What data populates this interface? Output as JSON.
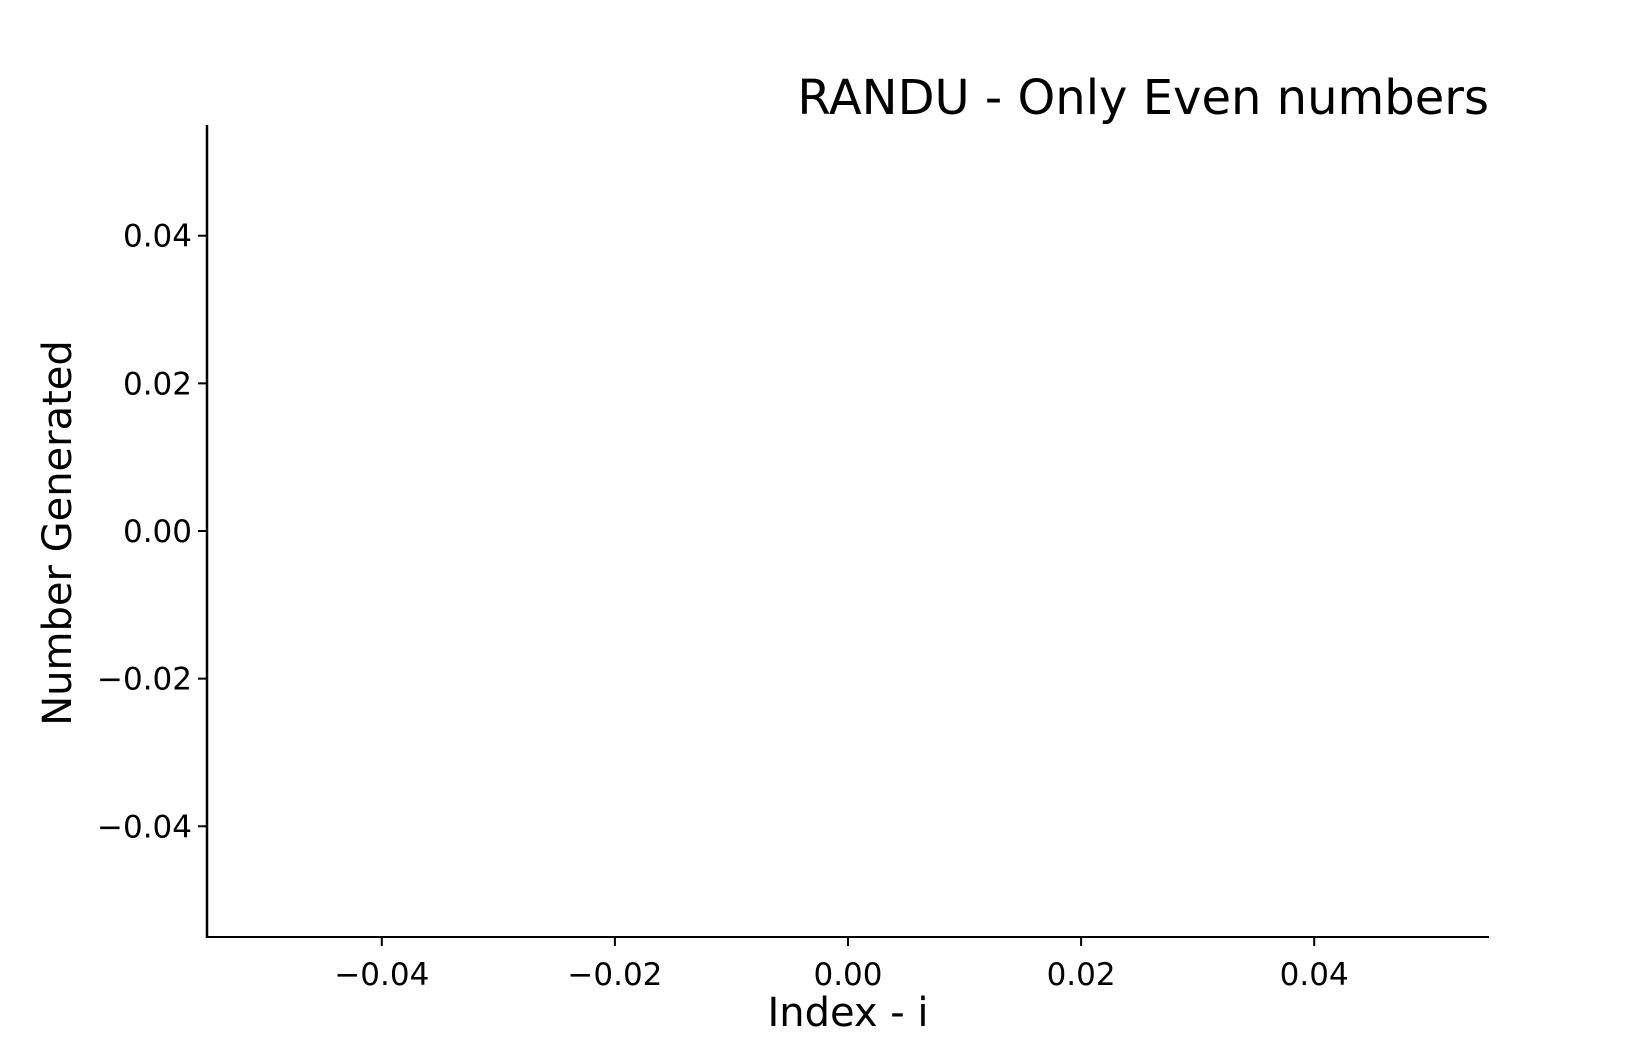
{
  "chart_data": {
    "type": "line",
    "title": "RANDU - Only Even numbers",
    "xlabel": "Index - i",
    "ylabel": "Number Generated",
    "xlim": [
      -0.055,
      0.055
    ],
    "ylim": [
      -0.055,
      0.055
    ],
    "x_ticks": [
      -0.04,
      -0.02,
      0.0,
      0.02,
      0.04
    ],
    "x_tick_labels": [
      "−0.04",
      "−0.02",
      "0.00",
      "0.02",
      "0.04"
    ],
    "y_ticks": [
      -0.04,
      -0.02,
      0.0,
      0.02,
      0.04
    ],
    "y_tick_labels": [
      "−0.04",
      "−0.02",
      "0.00",
      "0.02",
      "0.04"
    ],
    "series": [],
    "grid": false,
    "spines": [
      "left",
      "bottom"
    ],
    "colors": {
      "axis": "#000000",
      "text": "#000000",
      "background": "#ffffff"
    }
  }
}
